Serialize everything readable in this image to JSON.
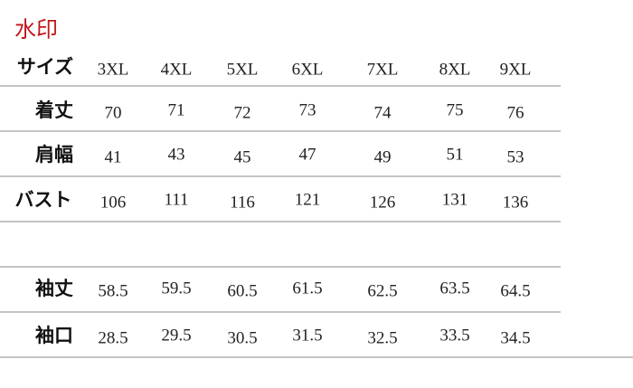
{
  "watermark": "水印",
  "table": {
    "header": {
      "label": "サイズ",
      "sizes": [
        "3XL",
        "4XL",
        "5XL",
        "6XL",
        "7XL",
        "8XL",
        "9XL"
      ]
    },
    "rows": [
      {
        "label": "着丈",
        "values": [
          "70",
          "71",
          "72",
          "73",
          "74",
          "75",
          "76"
        ]
      },
      {
        "label": "肩幅",
        "values": [
          "41",
          "43",
          "45",
          "47",
          "49",
          "51",
          "53"
        ]
      },
      {
        "label": "バスト",
        "values": [
          "106",
          "111",
          "116",
          "121",
          "126",
          "131",
          "136"
        ]
      },
      {
        "label": "袖丈",
        "values": [
          "58.5",
          "59.5",
          "60.5",
          "61.5",
          "62.5",
          "63.5",
          "64.5"
        ]
      },
      {
        "label": "袖口",
        "values": [
          "28.5",
          "29.5",
          "30.5",
          "31.5",
          "32.5",
          "33.5",
          "34.5"
        ]
      }
    ]
  }
}
